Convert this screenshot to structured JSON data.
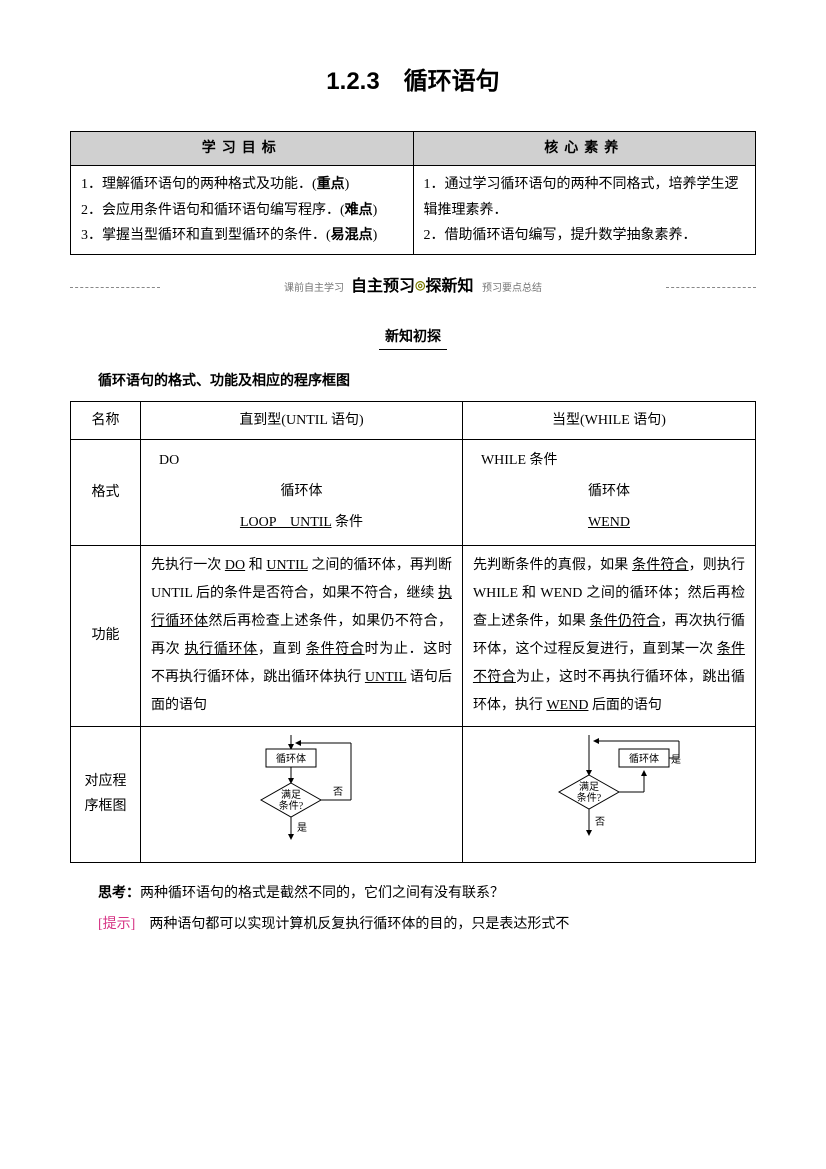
{
  "title": "1.2.3　循环语句",
  "goals_table": {
    "header_left": "学习目标",
    "header_right": "核心素养",
    "left_cell": "1．理解循环语句的两种格式及功能．(重点)\n2．会应用条件语句和循环语句编写程序．(难点)\n3．掌握当型循环和直到型循环的条件．(易混点)",
    "right_cell": "1．通过学习循环语句的两种不同格式，培养学生逻辑推理素养．\n2．借助循环语句编写，提升数学抽象素养．"
  },
  "banner": {
    "left_small": "课前自主学习",
    "main_left": "自主预习",
    "main_right": "探新知",
    "right_small": "预习要点总结"
  },
  "sub_banner": "新知初探",
  "subtitle": "循环语句的格式、功能及相应的程序框图",
  "loop_table": {
    "row_labels": {
      "name": "名称",
      "format": "格式",
      "function": "功能",
      "diagram": "对应程序框图"
    },
    "until": {
      "header": "直到型(UNTIL 语句)",
      "fmt_line1": "DO",
      "fmt_line2": "循环体",
      "fmt_line3_pre": "LOOP　UNTIL",
      "fmt_line3_post": " 条件",
      "func_parts": [
        "先执行一次 ",
        {
          "u": "DO"
        },
        " 和 ",
        {
          "u": "UNTIL"
        },
        " 之间的循环体，再判断 UNTIL 后的条件是否符合，如果不符合，继续 ",
        {
          "u": "执行循环体"
        },
        "然后再检查上述条件，如果仍不符合，再次 ",
        {
          "u": "执行循环体"
        },
        "，直到 ",
        {
          "u": "条件符合"
        },
        "时为止．这时不再执行循环体，跳出循环体执行 ",
        {
          "u": "UNTIL"
        },
        " 语句后面的语句"
      ],
      "diag": {
        "body": "循环体",
        "cond": "满足\n条件?",
        "no": "否",
        "yes": "是"
      }
    },
    "while": {
      "header": "当型(WHILE 语句)",
      "fmt_line1": "WHILE 条件",
      "fmt_line2": "循环体",
      "fmt_line3": "WEND",
      "func_parts": [
        "先判断条件的真假，如果 ",
        {
          "u": "条件符合"
        },
        "，则执行 WHILE 和 WEND 之间的循环体；然后再检查上述条件，如果 ",
        {
          "u": "条件仍符合"
        },
        "，再次执行循环体，这个过程反复进行，直到某一次 ",
        {
          "u": "条件不符合"
        },
        "为止，这时不再执行循环体，跳出循环体，执行 ",
        {
          "u": "WEND"
        },
        " 后面的语句"
      ],
      "diag": {
        "body": "循环体",
        "cond": "满足\n条件?",
        "yes": "是",
        "no": "否"
      }
    }
  },
  "think": {
    "label": "思考：",
    "text": "两种循环语句的格式是截然不同的，它们之间有没有联系？"
  },
  "hint": {
    "label": "[提示]",
    "text": "　两种语句都可以实现计算机反复执行循环体的目的，只是表达形式不"
  },
  "colors": {
    "hint_label": "#d63384"
  }
}
